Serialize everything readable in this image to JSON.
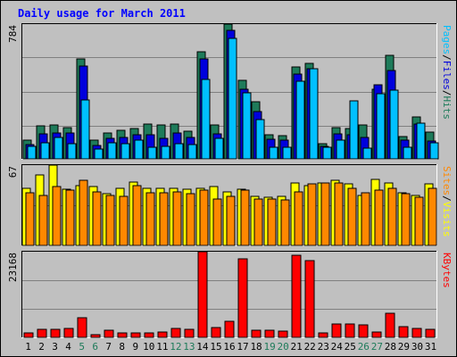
{
  "page": {
    "title": "Daily usage for March 2011"
  },
  "colors": {
    "background": "#c0c0c0",
    "panel": "#c0c0c0",
    "hits": "#1e7b5a",
    "files": "#0000dd",
    "pages": "#00c0ff",
    "visits": "#ffff00",
    "sites": "#ff8800",
    "kbytes": "#ff0000",
    "weekend_label": "#1e7b5a",
    "title": "#0000ff"
  },
  "chart_data": [
    {
      "type": "bar",
      "panel": "hits-files-pages",
      "categories": [
        "1",
        "2",
        "3",
        "4",
        "5",
        "6",
        "7",
        "8",
        "9",
        "10",
        "11",
        "12",
        "13",
        "14",
        "15",
        "16",
        "17",
        "18",
        "19",
        "20",
        "21",
        "22",
        "23",
        "24",
        "25",
        "26",
        "27",
        "28",
        "29",
        "30",
        "31"
      ],
      "weekend_days": [
        "5",
        "6",
        "12",
        "13",
        "19",
        "20",
        "26",
        "27"
      ],
      "ylim": [
        0,
        784
      ],
      "ytick_label": "784",
      "legend": [
        "Pages",
        "/",
        "Files",
        "/",
        "Hits"
      ],
      "series": [
        {
          "name": "Hits",
          "values": [
            110,
            190,
            195,
            180,
            580,
            110,
            150,
            165,
            175,
            205,
            195,
            200,
            160,
            625,
            195,
            784,
            455,
            330,
            140,
            135,
            535,
            555,
            90,
            180,
            175,
            195,
            405,
            600,
            130,
            245,
            155
          ]
        },
        {
          "name": "Files",
          "values": [
            85,
            145,
            150,
            150,
            540,
            80,
            120,
            125,
            140,
            140,
            120,
            150,
            125,
            580,
            145,
            750,
            405,
            275,
            115,
            110,
            495,
            525,
            75,
            145,
            140,
            125,
            430,
            515,
            110,
            205,
            105
          ]
        },
        {
          "name": "Pages",
          "values": [
            75,
            95,
            125,
            90,
            345,
            55,
            95,
            90,
            110,
            70,
            75,
            90,
            85,
            460,
            120,
            700,
            385,
            230,
            70,
            65,
            450,
            525,
            70,
            110,
            340,
            60,
            380,
            400,
            70,
            210,
            95
          ]
        }
      ]
    },
    {
      "type": "bar",
      "panel": "visits-sites",
      "categories": [
        "1",
        "2",
        "3",
        "4",
        "5",
        "6",
        "7",
        "8",
        "9",
        "10",
        "11",
        "12",
        "13",
        "14",
        "15",
        "16",
        "17",
        "18",
        "19",
        "20",
        "21",
        "22",
        "23",
        "24",
        "25",
        "26",
        "27",
        "28",
        "29",
        "30",
        "31"
      ],
      "ylim": [
        0,
        67
      ],
      "ytick_label": "67",
      "legend": [
        "Sites",
        "/",
        "Visits"
      ],
      "series": [
        {
          "name": "Visits",
          "values": [
            48,
            59,
            67,
            47,
            50,
            49,
            43,
            48,
            53,
            48,
            48,
            48,
            47,
            48,
            49,
            45,
            47,
            41,
            40,
            41,
            52,
            50,
            52,
            54,
            51,
            42,
            55,
            52,
            44,
            42,
            51
          ]
        },
        {
          "name": "Sites",
          "values": [
            44,
            42,
            49,
            46,
            54,
            45,
            42,
            41,
            50,
            44,
            44,
            45,
            43,
            46,
            39,
            41,
            46,
            39,
            39,
            38,
            45,
            51,
            52,
            52,
            48,
            44,
            46,
            48,
            43,
            40,
            48
          ]
        }
      ]
    },
    {
      "type": "bar",
      "panel": "kbytes",
      "categories": [
        "1",
        "2",
        "3",
        "4",
        "5",
        "6",
        "7",
        "8",
        "9",
        "10",
        "11",
        "12",
        "13",
        "14",
        "15",
        "16",
        "17",
        "18",
        "19",
        "20",
        "21",
        "22",
        "23",
        "24",
        "25",
        "26",
        "27",
        "28",
        "29",
        "30",
        "31"
      ],
      "ylim": [
        0,
        23168
      ],
      "ytick_label": "23168",
      "legend": [
        "KBytes"
      ],
      "series": [
        {
          "name": "KBytes",
          "values": [
            1100,
            2100,
            2100,
            2400,
            5200,
            650,
            2000,
            1300,
            1200,
            1100,
            1500,
            2300,
            2100,
            23168,
            2700,
            4300,
            21200,
            1900,
            2000,
            1800,
            22200,
            20800,
            1200,
            3700,
            3700,
            3300,
            1400,
            6400,
            2800,
            2300,
            2200
          ]
        }
      ]
    }
  ]
}
